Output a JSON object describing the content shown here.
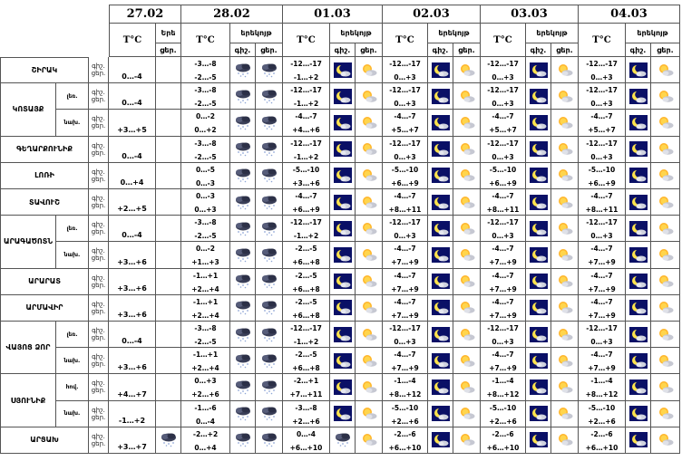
{
  "header": {
    "days": [
      {
        "date": "27.02",
        "temp_label": "T°C",
        "part": "Երե",
        "icons": [
          "ցեր."
        ]
      },
      {
        "date": "28.02",
        "temp_label": "T°C",
        "part": "երեկոյթ",
        "icons": [
          "գիշ.",
          "ցեր."
        ]
      },
      {
        "date": "01.03",
        "temp_label": "T°C",
        "part": "երեկոյթ",
        "icons": [
          "գիշ.",
          "ցեր."
        ]
      },
      {
        "date": "02.03",
        "temp_label": "T°C",
        "part": "երեկոյթ",
        "icons": [
          "գիշ.",
          "ցեր."
        ]
      },
      {
        "date": "03.03",
        "temp_label": "T°C",
        "part": "երեկոյթ",
        "icons": [
          "գիշ.",
          "ցեր."
        ]
      },
      {
        "date": "04.03",
        "temp_label": "T°C",
        "part": "երեկոյթ",
        "icons": [
          "գիշ.",
          "ցեր."
        ]
      }
    ]
  },
  "labels": {
    "night": "գիշ.",
    "day": "ցեր."
  },
  "icon_types": {
    "cloud": "overcast-snow-icon",
    "moon": "clear-night-moon-icon",
    "sun": "sunny-cloud-icon"
  },
  "regions": [
    {
      "name": "ՇԻՐԱԿ",
      "rows": [
        {
          "sub": "",
          "d1": "0…-4",
          "d1icon": "",
          "d2": [
            "-3…-8",
            "-2…-5"
          ],
          "d2icons": [
            "cloud",
            "cloud"
          ],
          "t": [
            [
              "-12…-17",
              "-1…+2"
            ],
            [
              "-12…-17",
              "0…+3"
            ],
            [
              "-12…-17",
              "0…+3"
            ],
            [
              "-12…-17",
              "0…+3"
            ]
          ],
          "icons": [
            [
              "moon",
              "sun"
            ],
            [
              "moon",
              "sun"
            ],
            [
              "moon",
              "sun"
            ],
            [
              "moon",
              "sun"
            ]
          ]
        }
      ]
    },
    {
      "name": "ԿՈՏԱՅՔ",
      "rows": [
        {
          "sub": "լեռ.",
          "d1": "0…-4",
          "d1icon": "",
          "d2": [
            "-3…-8",
            "-2…-5"
          ],
          "d2icons": [
            "cloud",
            "cloud"
          ],
          "t": [
            [
              "-12…-17",
              "-1…+2"
            ],
            [
              "-12…-17",
              "0…+3"
            ],
            [
              "-12…-17",
              "0…+3"
            ],
            [
              "-12…-17",
              "0…+3"
            ]
          ],
          "icons": [
            [
              "moon",
              "sun"
            ],
            [
              "moon",
              "sun"
            ],
            [
              "moon",
              "sun"
            ],
            [
              "moon",
              "sun"
            ]
          ]
        },
        {
          "sub": "նախ.",
          "d1": "+3…+5",
          "d1icon": "",
          "d2": [
            "0…-2",
            "0…+2"
          ],
          "d2icons": [
            "cloud",
            "cloud"
          ],
          "t": [
            [
              "-4…-7",
              "+4…+6"
            ],
            [
              "-4…-7",
              "+5…+7"
            ],
            [
              "-4…-7",
              "+5…+7"
            ],
            [
              "-4…-7",
              "+5…+7"
            ]
          ],
          "icons": [
            [
              "moon",
              "sun"
            ],
            [
              "moon",
              "sun"
            ],
            [
              "moon",
              "sun"
            ],
            [
              "moon",
              "sun"
            ]
          ]
        }
      ]
    },
    {
      "name": "ԳԵՂԱՐՔՈՒՆԻՔ",
      "rows": [
        {
          "sub": "",
          "d1": "0…-4",
          "d1icon": "",
          "d2": [
            "-3…-8",
            "-2…-5"
          ],
          "d2icons": [
            "cloud",
            "cloud"
          ],
          "t": [
            [
              "-12…-17",
              "-1…+2"
            ],
            [
              "-12…-17",
              "0…+3"
            ],
            [
              "-12…-17",
              "0…+3"
            ],
            [
              "-12…-17",
              "0…+3"
            ]
          ],
          "icons": [
            [
              "moon",
              "sun"
            ],
            [
              "moon",
              "sun"
            ],
            [
              "moon",
              "sun"
            ],
            [
              "moon",
              "sun"
            ]
          ]
        }
      ]
    },
    {
      "name": "ԼՈՌԻ",
      "rows": [
        {
          "sub": "",
          "d1": "0…+4",
          "d1icon": "",
          "d2": [
            "0…-5",
            "0…-3"
          ],
          "d2icons": [
            "cloud",
            "cloud"
          ],
          "t": [
            [
              "-5…-10",
              "+3…+6"
            ],
            [
              "-5…-10",
              "+6…+9"
            ],
            [
              "-5…-10",
              "+6…+9"
            ],
            [
              "-5…-10",
              "+6…+9"
            ]
          ],
          "icons": [
            [
              "moon",
              "sun"
            ],
            [
              "moon",
              "sun"
            ],
            [
              "moon",
              "sun"
            ],
            [
              "moon",
              "sun"
            ]
          ]
        }
      ]
    },
    {
      "name": "ՏԱՎՈՒՇ",
      "rows": [
        {
          "sub": "",
          "d1": "+2…+5",
          "d1icon": "",
          "d2": [
            "0…-3",
            "0…+3"
          ],
          "d2icons": [
            "cloud",
            "cloud"
          ],
          "t": [
            [
              "-4…-7",
              "+6…+9"
            ],
            [
              "-4…-7",
              "+8…+11"
            ],
            [
              "-4…-7",
              "+8…+11"
            ],
            [
              "-4…-7",
              "+8…+11"
            ]
          ],
          "icons": [
            [
              "moon",
              "sun"
            ],
            [
              "moon",
              "sun"
            ],
            [
              "moon",
              "sun"
            ],
            [
              "moon",
              "sun"
            ]
          ]
        }
      ]
    },
    {
      "name": "ԱՐԱԳԱԾՈՏՆ",
      "rows": [
        {
          "sub": "լեռ.",
          "d1": "0…-4",
          "d1icon": "",
          "d2": [
            "-3…-8",
            "-2…-5"
          ],
          "d2icons": [
            "cloud",
            "cloud"
          ],
          "t": [
            [
              "-12…-17",
              "-1…+2"
            ],
            [
              "-12…-17",
              "0…+3"
            ],
            [
              "-12…-17",
              "0…+3"
            ],
            [
              "-12…-17",
              "0…+3"
            ]
          ],
          "icons": [
            [
              "moon",
              "sun"
            ],
            [
              "moon",
              "sun"
            ],
            [
              "moon",
              "sun"
            ],
            [
              "moon",
              "sun"
            ]
          ]
        },
        {
          "sub": "նախ.",
          "d1": "+3…+6",
          "d1icon": "",
          "d2": [
            "0…-2",
            "+1…+3"
          ],
          "d2icons": [
            "cloud",
            "cloud"
          ],
          "t": [
            [
              "-2…-5",
              "+6…+8"
            ],
            [
              "-4…-7",
              "+7…+9"
            ],
            [
              "-4…-7",
              "+7…+9"
            ],
            [
              "-4…-7",
              "+7…+9"
            ]
          ],
          "icons": [
            [
              "moon",
              "sun"
            ],
            [
              "moon",
              "sun"
            ],
            [
              "moon",
              "sun"
            ],
            [
              "moon",
              "sun"
            ]
          ]
        }
      ]
    },
    {
      "name": "ԱՐԱՐԱՏ",
      "rows": [
        {
          "sub": "",
          "d1": "+3…+6",
          "d1icon": "",
          "d2": [
            "-1…+1",
            "+2…+4"
          ],
          "d2icons": [
            "cloud",
            "cloud"
          ],
          "t": [
            [
              "-2…-5",
              "+6…+8"
            ],
            [
              "-4…-7",
              "+7…+9"
            ],
            [
              "-4…-7",
              "+7…+9"
            ],
            [
              "-4…-7",
              "+7…+9"
            ]
          ],
          "icons": [
            [
              "moon",
              "sun"
            ],
            [
              "moon",
              "sun"
            ],
            [
              "moon",
              "sun"
            ],
            [
              "moon",
              "sun"
            ]
          ]
        }
      ]
    },
    {
      "name": "ԱՐՄԱՎԻՐ",
      "rows": [
        {
          "sub": "",
          "d1": "+3…+6",
          "d1icon": "",
          "d2": [
            "-1…+1",
            "+2…+4"
          ],
          "d2icons": [
            "cloud",
            "cloud"
          ],
          "t": [
            [
              "-2…-5",
              "+6…+8"
            ],
            [
              "-4…-7",
              "+7…+9"
            ],
            [
              "-4…-7",
              "+7…+9"
            ],
            [
              "-4…-7",
              "+7…+9"
            ]
          ],
          "icons": [
            [
              "moon",
              "sun"
            ],
            [
              "moon",
              "sun"
            ],
            [
              "moon",
              "sun"
            ],
            [
              "moon",
              "sun"
            ]
          ]
        }
      ]
    },
    {
      "name": "ՎԱՅՈՑ ՁՈՐ",
      "rows": [
        {
          "sub": "լեռ.",
          "d1": "0…-4",
          "d1icon": "",
          "d2": [
            "-3…-8",
            "-2…-5"
          ],
          "d2icons": [
            "cloud",
            "cloud"
          ],
          "t": [
            [
              "-12…-17",
              "-1…+2"
            ],
            [
              "-12…-17",
              "0…+3"
            ],
            [
              "-12…-17",
              "0…+3"
            ],
            [
              "-12…-17",
              "0…+3"
            ]
          ],
          "icons": [
            [
              "moon",
              "sun"
            ],
            [
              "moon",
              "sun"
            ],
            [
              "moon",
              "sun"
            ],
            [
              "moon",
              "sun"
            ]
          ]
        },
        {
          "sub": "նախ.",
          "d1": "+3…+6",
          "d1icon": "",
          "d2": [
            "-1…+1",
            "+2…+4"
          ],
          "d2icons": [
            "cloud",
            "cloud"
          ],
          "t": [
            [
              "-2…-5",
              "+6…+8"
            ],
            [
              "-4…-7",
              "+7…+9"
            ],
            [
              "-4…-7",
              "+7…+9"
            ],
            [
              "-4…-7",
              "+7…+9"
            ]
          ],
          "icons": [
            [
              "moon",
              "sun"
            ],
            [
              "moon",
              "sun"
            ],
            [
              "moon",
              "sun"
            ],
            [
              "moon",
              "sun"
            ]
          ]
        }
      ]
    },
    {
      "name": "ՍՅՈՒՆԻՔ",
      "rows": [
        {
          "sub": "հով.",
          "d1": "+4…+7",
          "d1icon": "",
          "d2": [
            "0…+3",
            "+2…+6"
          ],
          "d2icons": [
            "cloud",
            "cloud"
          ],
          "t": [
            [
              "-2…+1",
              "+7…+11"
            ],
            [
              "-1…-4",
              "+8…+12"
            ],
            [
              "-1…-4",
              "+8…+12"
            ],
            [
              "-1…-4",
              "+8…+12"
            ]
          ],
          "icons": [
            [
              "moon",
              "sun"
            ],
            [
              "moon",
              "sun"
            ],
            [
              "moon",
              "sun"
            ],
            [
              "moon",
              "sun"
            ]
          ]
        },
        {
          "sub": "նախ.",
          "d1": "-1…+2",
          "d1icon": "",
          "d2": [
            "-1…-6",
            "0…-4"
          ],
          "d2icons": [
            "cloud",
            "cloud"
          ],
          "t": [
            [
              "-3…-8",
              "+2…+6"
            ],
            [
              "-5…-10",
              "+2…+6"
            ],
            [
              "-5…-10",
              "+2…+6"
            ],
            [
              "-5…-10",
              "+2…+6"
            ]
          ],
          "icons": [
            [
              "moon",
              "sun"
            ],
            [
              "moon",
              "sun"
            ],
            [
              "moon",
              "sun"
            ],
            [
              "moon",
              "sun"
            ]
          ]
        }
      ]
    },
    {
      "name": "ԱՐՑԱԽ",
      "rows": [
        {
          "sub": "",
          "d1": "+3…+7",
          "d1icon": "cloud",
          "d2": [
            "-2…+2",
            "0…+4"
          ],
          "d2icons": [
            "cloud",
            "cloud"
          ],
          "t": [
            [
              "0…-4",
              "+6…+10"
            ],
            [
              "-2…-6",
              "+6…+10"
            ],
            [
              "-2…-6",
              "+6…+10"
            ],
            [
              "-2…-6",
              "+6…+10"
            ]
          ],
          "icons": [
            [
              "cloud",
              "sun"
            ],
            [
              "moon",
              "sun"
            ],
            [
              "moon",
              "sun"
            ],
            [
              "moon",
              "sun"
            ]
          ]
        }
      ]
    }
  ]
}
